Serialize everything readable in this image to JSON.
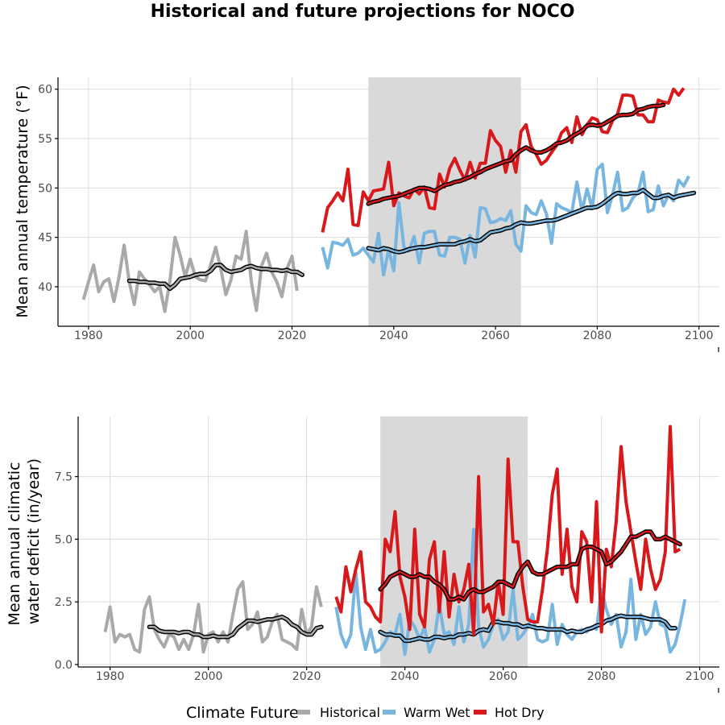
{
  "title": "Historical and future projections for NOCO",
  "legend": {
    "title": "Climate Future",
    "items": [
      {
        "label": "Historical",
        "color": "#a9a9a9"
      },
      {
        "label": "Warm Wet",
        "color": "#78b6e0"
      },
      {
        "label": "Hot Dry",
        "color": "#d7191c"
      }
    ]
  },
  "chart_data": [
    {
      "type": "line",
      "ylabel": "Mean annual temperature (°F)",
      "xlim": [
        1974,
        2104
      ],
      "ylim": [
        36,
        61.2
      ],
      "xticks": [
        1980,
        2000,
        2020,
        2040,
        2060,
        2080,
        2100
      ],
      "yticks": [
        40,
        45,
        50,
        55,
        60
      ],
      "shaded_period": [
        2035,
        2065
      ],
      "series": [
        {
          "name": "Historical",
          "color": "#a9a9a9",
          "x_start": 1979,
          "values": [
            38.7,
            40.5,
            42.2,
            39.5,
            40.5,
            40.8,
            38.5,
            41.0,
            44.2,
            40.5,
            38.2,
            41.5,
            40.8,
            40.2,
            39.5,
            40.0,
            37.5,
            40.6,
            45.0,
            43.2,
            41.0,
            42.8,
            41.0,
            40.7,
            40.6,
            42.2,
            44.0,
            41.8,
            39.2,
            40.7,
            43.1,
            42.8,
            45.6,
            40.5,
            37.6,
            42.1,
            43.4,
            41.5,
            40.5,
            39.0,
            41.8,
            43.1,
            39.6
          ]
        },
        {
          "name": "Historical (smooth)",
          "color": "#000000",
          "smooth": true,
          "x_start": 1988,
          "values": [
            40.6,
            40.6,
            40.5,
            40.5,
            40.4,
            40.4,
            40.3,
            40.3,
            39.8,
            40.2,
            40.8,
            40.9,
            41.0,
            41.2,
            41.3,
            41.3,
            41.6,
            42.2,
            42.2,
            41.7,
            41.5,
            41.6,
            41.7,
            42.0,
            42.1,
            41.9,
            41.8,
            41.8,
            41.7,
            41.7,
            41.6,
            41.7,
            41.5,
            41.5,
            41.2
          ]
        },
        {
          "name": "Warm Wet",
          "color": "#78b6e0",
          "x_start": 2026,
          "values": [
            44.0,
            41.9,
            44.5,
            44.4,
            44.2,
            44.8,
            43.2,
            43.4,
            43.9,
            43.2,
            42.5,
            45.4,
            41.2,
            43.8,
            41.6,
            48.5,
            44.0,
            43.6,
            45.1,
            42.4,
            45.4,
            45.6,
            45.6,
            43.2,
            43.1,
            45.0,
            45.0,
            44.8,
            42.4,
            45.2,
            43.0,
            48.0,
            47.9,
            46.5,
            46.6,
            46.9,
            46.7,
            47.7,
            44.3,
            43.6,
            48.2,
            47.5,
            47.3,
            48.7,
            47.4,
            44.4,
            48.4,
            48.0,
            47.8,
            47.5,
            50.6,
            47.7,
            49.9,
            47.9,
            51.9,
            52.4,
            47.5,
            49.3,
            51.6,
            47.7,
            48.0,
            49.0,
            49.5,
            51.6,
            47.6,
            47.8,
            50.2,
            48.2,
            49.3,
            48.7,
            50.8,
            50.2,
            51.2
          ]
        },
        {
          "name": "Warm Wet (smooth)",
          "color": "#000000",
          "smooth": true,
          "x_start": 2035,
          "values": [
            43.9,
            43.8,
            43.7,
            43.9,
            43.8,
            43.6,
            43.5,
            43.6,
            43.8,
            43.9,
            44.0,
            44.0,
            44.1,
            44.2,
            44.3,
            44.3,
            44.3,
            44.3,
            44.5,
            44.6,
            44.8,
            44.6,
            44.7,
            45.1,
            45.5,
            45.6,
            45.7,
            45.9,
            46.0,
            46.3,
            46.5,
            46.4,
            46.4,
            46.5,
            46.6,
            46.7,
            46.7,
            46.8,
            47.0,
            47.2,
            47.4,
            47.6,
            47.8,
            48.0,
            48.0,
            48.1,
            48.4,
            48.8,
            49.2,
            49.5,
            49.4,
            49.4,
            49.5,
            49.5,
            49.8,
            49.4,
            49.0,
            49.0,
            49.2,
            49.3,
            49.0,
            49.2,
            49.3,
            49.4,
            49.5
          ]
        },
        {
          "name": "Hot Dry",
          "color": "#d7191c",
          "x_start": 2026,
          "values": [
            45.5,
            48.0,
            48.7,
            49.5,
            48.7,
            51.9,
            46.3,
            46.2,
            49.6,
            48.7,
            49.7,
            49.8,
            49.9,
            52.6,
            48.2,
            49.5,
            49.2,
            49.0,
            49.9,
            49.4,
            50.1,
            48.0,
            47.9,
            51.4,
            50.1,
            52.0,
            53.0,
            51.8,
            50.8,
            52.6,
            51.0,
            52.5,
            52.5,
            55.8,
            54.8,
            54.2,
            51.6,
            53.8,
            51.6,
            55.7,
            56.4,
            54.2,
            53.4,
            52.4,
            52.8,
            53.6,
            54.3,
            55.6,
            56.1,
            54.6,
            57.2,
            55.4,
            56.4,
            57.1,
            56.9,
            55.7,
            55.6,
            56.8,
            57.5,
            59.4,
            59.4,
            59.3,
            57.4,
            57.4,
            56.7,
            56.7,
            58.9,
            58.7,
            58.6,
            60.0,
            59.4,
            60.1
          ]
        },
        {
          "name": "Hot Dry (smooth)",
          "color": "#000000",
          "smooth": true,
          "x_start": 2035,
          "values": [
            48.4,
            48.6,
            48.7,
            48.9,
            49.0,
            49.1,
            49.2,
            49.4,
            49.6,
            49.8,
            50.0,
            50.0,
            49.9,
            49.7,
            50.0,
            50.3,
            50.4,
            50.6,
            50.7,
            50.9,
            51.1,
            51.4,
            51.6,
            51.9,
            52.1,
            52.3,
            52.5,
            52.7,
            52.8,
            53.4,
            53.8,
            54.1,
            53.8,
            53.6,
            53.6,
            53.8,
            54.1,
            54.5,
            54.6,
            54.8,
            55.2,
            55.5,
            55.8,
            56.3,
            56.4,
            56.3,
            56.4,
            56.7,
            57.0,
            57.3,
            57.4,
            57.4,
            57.5,
            57.9,
            58.0,
            58.2,
            58.3,
            58.3,
            58.4
          ]
        }
      ]
    },
    {
      "type": "line",
      "ylabel": "Mean annual climatic water deficit (in/year)",
      "xlim": [
        1973.5,
        2104
      ],
      "ylim": [
        -0.1,
        9.9
      ],
      "xticks": [
        1980,
        2000,
        2020,
        2040,
        2060,
        2080,
        2100
      ],
      "yticks": [
        0.0,
        2.5,
        5.0,
        7.5
      ],
      "ytick_labels": [
        "0.0",
        "2.5",
        "5.0",
        "7.5"
      ],
      "shaded_period": [
        2035,
        2065
      ],
      "series": [
        {
          "name": "Historical",
          "color": "#a9a9a9",
          "x_start": 1979,
          "values": [
            1.3,
            2.3,
            0.9,
            1.2,
            1.1,
            1.2,
            0.6,
            0.5,
            2.2,
            2.7,
            1.4,
            1.0,
            0.7,
            1.2,
            1.1,
            0.6,
            1.0,
            0.6,
            1.2,
            2.4,
            0.5,
            1.2,
            1.3,
            0.9,
            1.3,
            0.9,
            2.0,
            3.0,
            3.3,
            1.4,
            1.6,
            2.1,
            0.9,
            1.1,
            1.7,
            2.0,
            1.0,
            0.9,
            0.8,
            0.6,
            2.2,
            1.2,
            1.5,
            3.1,
            2.3
          ]
        },
        {
          "name": "Historical (smooth)",
          "color": "#000000",
          "smooth": true,
          "x_start": 1988,
          "values": [
            1.5,
            1.5,
            1.35,
            1.3,
            1.3,
            1.3,
            1.25,
            1.3,
            1.3,
            1.2,
            1.2,
            1.1,
            1.1,
            1.15,
            1.1,
            1.1,
            1.1,
            1.2,
            1.45,
            1.6,
            1.75,
            1.75,
            1.7,
            1.75,
            1.8,
            1.8,
            1.85,
            1.9,
            1.8,
            1.6,
            1.5,
            1.3,
            1.2,
            1.2,
            1.45,
            1.5
          ]
        },
        {
          "name": "Warm Wet",
          "color": "#78b6e0",
          "x_start": 2026,
          "values": [
            2.3,
            1.2,
            0.7,
            1.2,
            3.7,
            1.5,
            0.6,
            1.4,
            0.5,
            0.6,
            0.9,
            1.3,
            1.2,
            2.0,
            0.4,
            1.8,
            1.5,
            1.0,
            1.5,
            0.5,
            1.0,
            2.4,
            1.2,
            1.3,
            0.8,
            2.3,
            0.9,
            1.6,
            5.4,
            1.5,
            0.7,
            1.0,
            1.6,
            1.8,
            1.0,
            1.3,
            3.0,
            1.0,
            1.2,
            1.5,
            2.0,
            1.0,
            0.9,
            1.0,
            2.4,
            0.8,
            1.6,
            1.2,
            1.0,
            1.3,
            1.4,
            1.3,
            1.5,
            1.4,
            3.0,
            2.2,
            1.6,
            2.0,
            0.7,
            1.3,
            3.4,
            1.0,
            2.0,
            1.2,
            1.5,
            2.5,
            1.6,
            1.5,
            0.5,
            0.8,
            1.6,
            2.6
          ]
        },
        {
          "name": "Warm Wet (smooth)",
          "color": "#000000",
          "smooth": true,
          "x_start": 2035,
          "values": [
            1.3,
            1.2,
            1.2,
            1.15,
            1.15,
            0.95,
            0.95,
            1.0,
            1.05,
            1.0,
            1.0,
            1.1,
            1.1,
            1.05,
            1.1,
            1.1,
            1.2,
            1.2,
            1.25,
            1.2,
            1.35,
            1.4,
            1.35,
            1.7,
            1.7,
            1.65,
            1.65,
            1.6,
            1.6,
            1.5,
            1.55,
            1.5,
            1.45,
            1.45,
            1.4,
            1.4,
            1.4,
            1.4,
            1.3,
            1.35,
            1.3,
            1.3,
            1.4,
            1.45,
            1.55,
            1.6,
            1.75,
            1.8,
            1.9,
            1.95,
            1.9,
            1.9,
            1.9,
            1.9,
            1.85,
            1.8,
            1.8,
            1.8,
            1.7,
            1.45,
            1.45
          ]
        },
        {
          "name": "Hot Dry",
          "color": "#d7191c",
          "x_start": 2026,
          "values": [
            2.7,
            2.1,
            3.9,
            2.9,
            3.8,
            4.5,
            2.5,
            2.3,
            1.9,
            1.7,
            5.0,
            4.5,
            6.1,
            3.5,
            2.7,
            1.4,
            5.4,
            2.0,
            1.5,
            4.2,
            4.9,
            2.1,
            4.5,
            1.9,
            3.6,
            2.5,
            3.0,
            4.0,
            1.2,
            7.5,
            2.1,
            2.4,
            1.6,
            3.3,
            2.0,
            8.2,
            4.9,
            4.9,
            3.1,
            1.8,
            1.7,
            1.7,
            3.0,
            4.6,
            6.8,
            7.8,
            3.6,
            5.4,
            3.1,
            2.5,
            5.3,
            4.9,
            2.5,
            6.5,
            1.3,
            4.6,
            3.9,
            5.7,
            8.7,
            6.5,
            5.3,
            4.1,
            3.0,
            5.0,
            3.8,
            3.0,
            3.4,
            4.5,
            9.5,
            4.5,
            4.6
          ]
        },
        {
          "name": "Hot Dry (smooth)",
          "color": "#000000",
          "smooth": true,
          "x_start": 2035,
          "values": [
            3.0,
            3.2,
            3.5,
            3.6,
            3.7,
            3.6,
            3.5,
            3.5,
            3.6,
            3.5,
            3.5,
            3.3,
            3.2,
            3.0,
            2.6,
            2.6,
            2.7,
            2.6,
            2.9,
            3.0,
            2.9,
            2.9,
            3.0,
            3.1,
            3.3,
            3.3,
            3.2,
            3.1,
            3.6,
            3.9,
            4.1,
            3.7,
            3.6,
            3.6,
            3.7,
            3.8,
            3.9,
            3.9,
            3.9,
            4.0,
            4.0,
            4.6,
            4.7,
            4.7,
            4.6,
            4.5,
            4.0,
            4.1,
            4.3,
            4.5,
            4.8,
            5.1,
            5.1,
            5.2,
            5.3,
            5.3,
            5.0,
            5.0,
            5.1,
            5.0,
            4.9,
            4.8
          ]
        }
      ]
    }
  ]
}
